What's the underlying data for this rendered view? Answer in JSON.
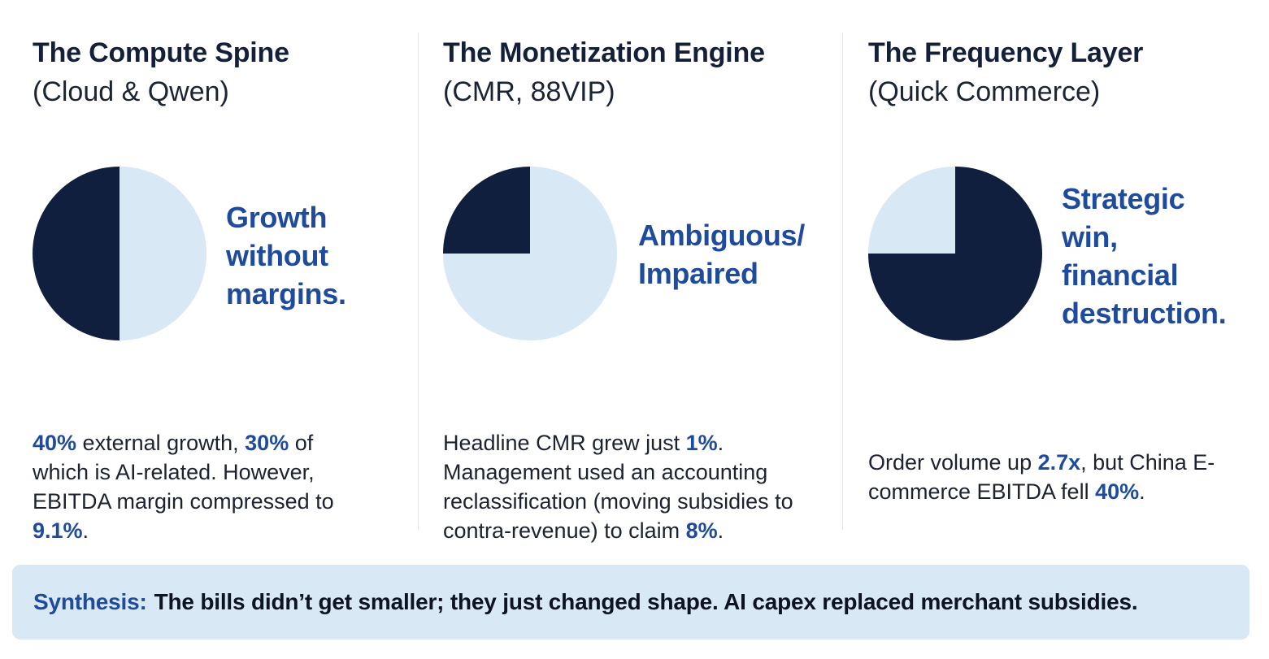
{
  "colors": {
    "dark": "#0f1f3d",
    "light": "#d8e8f5",
    "accent": "#1f4b9c",
    "panel": "#d9e8f5"
  },
  "columns": [
    {
      "title": "The Compute Spine",
      "subtitle": "(Cloud & Qwen)",
      "pie": {
        "dark_fraction": 0.5,
        "dark_start": "bottom",
        "direction": "clockwise"
      },
      "verdict": [
        "Growth",
        "without",
        "margins."
      ],
      "description": [
        {
          "text": "40%",
          "hl": true
        },
        {
          "text": " external growth, ",
          "hl": false
        },
        {
          "text": "30%",
          "hl": true
        },
        {
          "text": " of which is AI-related. However, EBITDA margin compressed to ",
          "hl": false
        },
        {
          "text": "9.1%",
          "hl": true
        },
        {
          "text": ".",
          "hl": false
        }
      ]
    },
    {
      "title": "The Monetization Engine",
      "subtitle": "(CMR, 88VIP)",
      "pie": {
        "dark_fraction": 0.25,
        "dark_start": "left",
        "direction": "clockwise"
      },
      "verdict": [
        "Ambiguous/",
        "Impaired"
      ],
      "description": [
        {
          "text": "Headline CMR grew just ",
          "hl": false
        },
        {
          "text": "1%",
          "hl": true
        },
        {
          "text": ". Management used an accounting reclassification (moving subsidies to contra-revenue) to claim ",
          "hl": false
        },
        {
          "text": "8%",
          "hl": true
        },
        {
          "text": ".",
          "hl": false
        }
      ]
    },
    {
      "title": "The Frequency Layer",
      "subtitle": "(Quick Commerce)",
      "pie": {
        "dark_fraction": 0.75,
        "dark_start": "top",
        "direction": "clockwise"
      },
      "verdict": [
        "Strategic",
        "win,",
        "financial",
        "destruction."
      ],
      "description": [
        {
          "text": "Order volume up ",
          "hl": false
        },
        {
          "text": "2.7x",
          "hl": true
        },
        {
          "text": ", but China E-commerce EBITDA fell ",
          "hl": false
        },
        {
          "text": "40%",
          "hl": true
        },
        {
          "text": ".",
          "hl": false
        }
      ]
    }
  ],
  "synthesis": {
    "label": "Synthesis:",
    "text": "The bills didn’t get smaller; they just changed shape. AI capex replaced merchant subsidies."
  }
}
